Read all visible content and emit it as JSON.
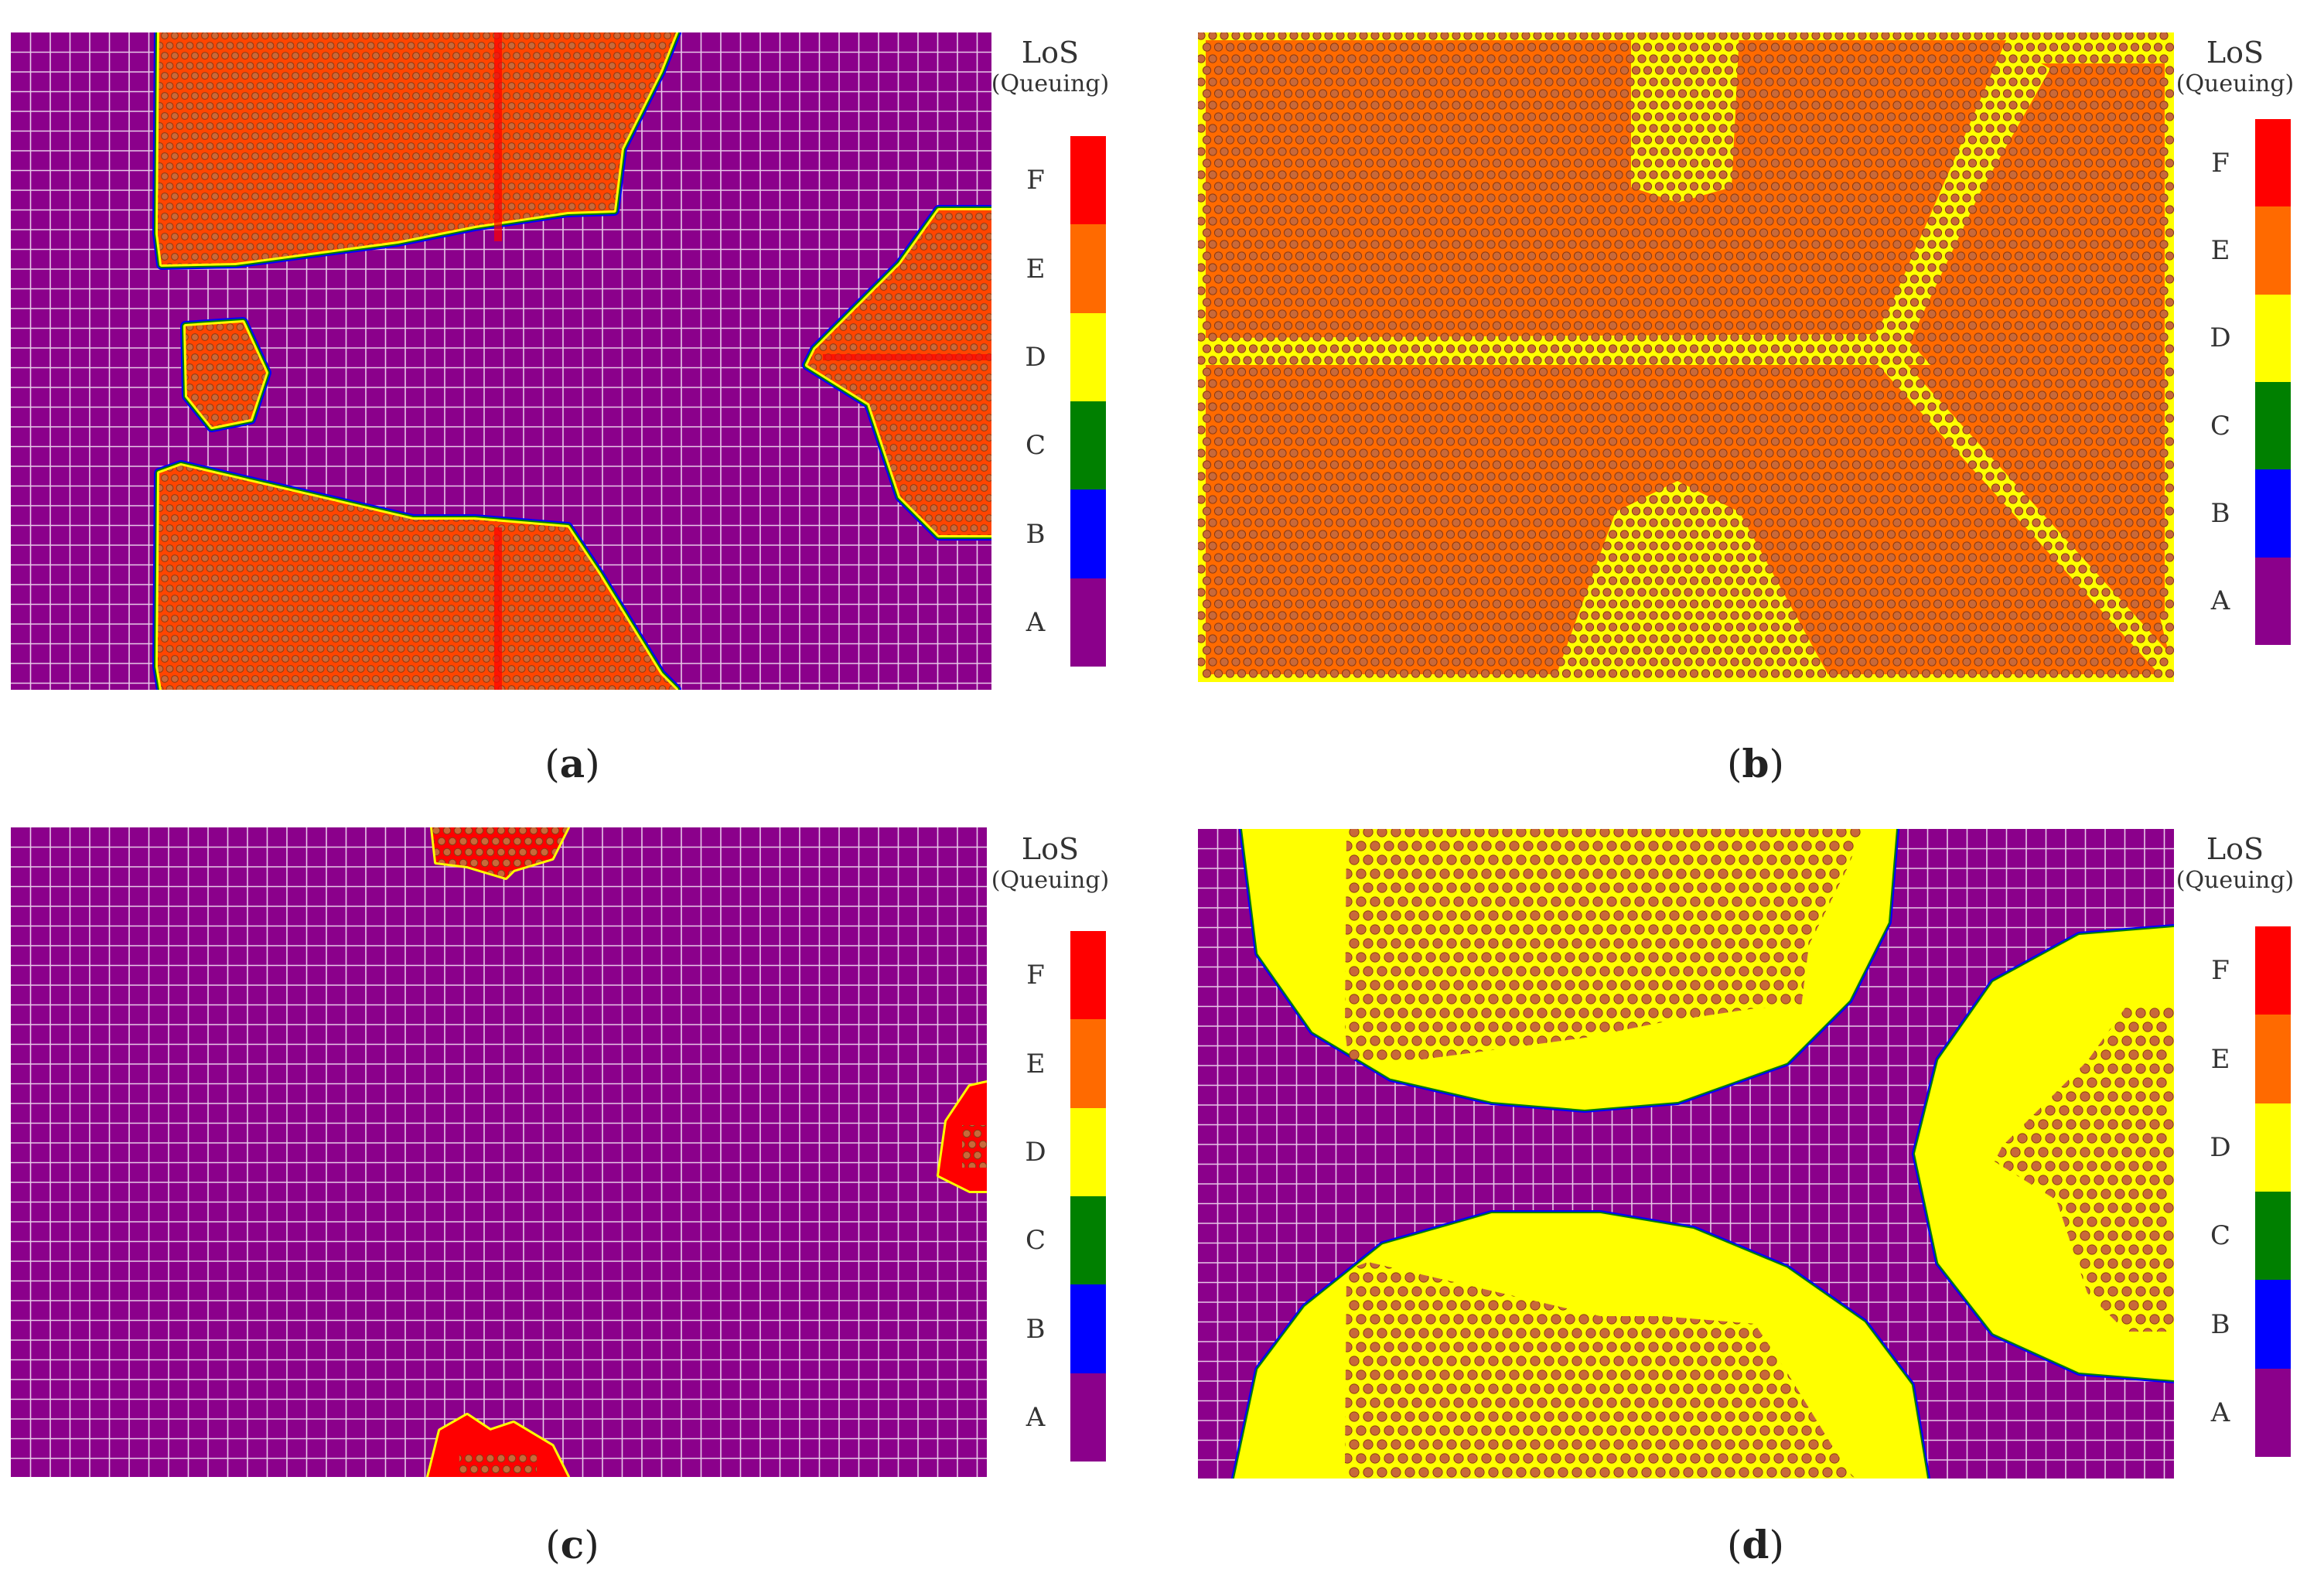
{
  "legend": {
    "title": "LoS",
    "subtitle": "(Queuing)",
    "levels": [
      {
        "label": "F",
        "color": "#ff0000"
      },
      {
        "label": "E",
        "color": "#ff6a00"
      },
      {
        "label": "D",
        "color": "#ffff00"
      },
      {
        "label": "C",
        "color": "#008000"
      },
      {
        "label": "B",
        "color": "#0000ff"
      },
      {
        "label": "A",
        "color": "#8b008b"
      }
    ]
  },
  "colors": {
    "background_level_A": "#8b008b",
    "grid_lines": "#e8c8e8",
    "crowd_agents": "#c8693a"
  },
  "panels": [
    {
      "id": "a",
      "caption_open": "(",
      "caption_letter": "a",
      "caption_close": ")"
    },
    {
      "id": "b",
      "caption_open": "(",
      "caption_letter": "b",
      "caption_close": ")"
    },
    {
      "id": "c",
      "caption_open": "(",
      "caption_letter": "c",
      "caption_close": ")"
    },
    {
      "id": "d",
      "caption_open": "(",
      "caption_letter": "d",
      "caption_close": ")"
    }
  ]
}
